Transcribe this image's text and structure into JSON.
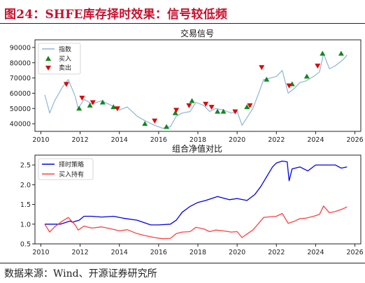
{
  "figure_title": "图24：SHFE库存择时效果：信号较低频",
  "source": "数据来源：Wind、开源证券研究所",
  "colors": {
    "accent": "#c8102e",
    "price": "#8fb5d6",
    "buy": "#0b8a1e",
    "sell": "#e00000",
    "strategy": "#0000ee",
    "hold": "#ff4040"
  },
  "chart_data": [
    {
      "type": "line",
      "title": "交易信号",
      "ylim": [
        35000,
        95000
      ],
      "yticks": [
        40000,
        50000,
        60000,
        70000,
        80000,
        90000
      ],
      "xlim": [
        2009.7,
        2026.3
      ],
      "xticks": [
        2010,
        2012,
        2014,
        2016,
        2018,
        2020,
        2022,
        2024,
        2026
      ],
      "legend_position": "top-left",
      "legend": [
        "指数",
        "买入",
        "卖出"
      ],
      "series": [
        {
          "name": "指数",
          "x": [
            2010.2,
            2010.45,
            2010.7,
            2011.1,
            2011.4,
            2011.75,
            2011.9,
            2012.2,
            2012.6,
            2013.1,
            2013.6,
            2014.0,
            2014.4,
            2014.9,
            2015.3,
            2015.8,
            2016.2,
            2016.6,
            2016.9,
            2017.2,
            2017.6,
            2017.9,
            2018.3,
            2018.6,
            2018.9,
            2019.3,
            2019.7,
            2020.0,
            2020.25,
            2020.5,
            2020.8,
            2021.1,
            2021.35,
            2021.7,
            2022.0,
            2022.3,
            2022.6,
            2022.9,
            2023.2,
            2023.5,
            2023.9,
            2024.2,
            2024.4,
            2024.7,
            2025.0,
            2025.4,
            2025.6
          ],
          "y": [
            59000,
            47000,
            55000,
            64000,
            69000,
            58000,
            50000,
            56000,
            53000,
            55000,
            52000,
            49000,
            51000,
            45000,
            42000,
            39000,
            37000,
            38000,
            45000,
            47000,
            48000,
            54000,
            52000,
            48000,
            50000,
            49000,
            47000,
            48000,
            39000,
            44000,
            50000,
            60000,
            69000,
            70000,
            71000,
            75000,
            60000,
            63000,
            67000,
            68000,
            71000,
            74000,
            86000,
            76000,
            78000,
            82000,
            85000
          ]
        }
      ],
      "buy_signals": {
        "x": [
          2011.95,
          2012.5,
          2013.15,
          2013.7,
          2015.3,
          2016.4,
          2016.85,
          2017.7,
          2019.0,
          2019.3,
          2020.5,
          2021.5,
          2022.8,
          2023.55,
          2024.35,
          2025.3
        ],
        "y": [
          50000,
          52000,
          54000,
          51000,
          40000,
          38000,
          47000,
          55000,
          48000,
          48000,
          51000,
          69000,
          66000,
          71000,
          86000,
          86000
        ]
      },
      "sell_signals": {
        "x": [
          2011.3,
          2012.1,
          2012.65,
          2013.9,
          2015.8,
          2016.9,
          2017.55,
          2018.4,
          2018.7,
          2019.9,
          2020.65,
          2021.25,
          2022.65,
          2024.1
        ],
        "y": [
          66000,
          57000,
          54000,
          50000,
          42000,
          49000,
          52000,
          53000,
          51000,
          48000,
          52000,
          77000,
          65000,
          78000
        ]
      }
    },
    {
      "type": "line",
      "title": "组合净值对比",
      "ylim": [
        0.5,
        2.75
      ],
      "yticks": [
        0.5,
        1.0,
        1.5,
        2.0,
        2.5
      ],
      "xlim": [
        2009.7,
        2026.3
      ],
      "xticks": [
        2010,
        2012,
        2014,
        2016,
        2018,
        2020,
        2022,
        2024,
        2026
      ],
      "legend_position": "top-left",
      "series": [
        {
          "name": "择时策略",
          "x": [
            2010.2,
            2011.0,
            2011.5,
            2011.6,
            2011.95,
            2012.2,
            2012.6,
            2013.1,
            2013.7,
            2014.2,
            2014.9,
            2015.2,
            2015.6,
            2016.0,
            2016.6,
            2016.9,
            2017.2,
            2017.6,
            2018.0,
            2018.4,
            2019.0,
            2019.6,
            2020.0,
            2020.5,
            2020.9,
            2021.2,
            2021.5,
            2021.8,
            2022.0,
            2022.3,
            2022.55,
            2022.65,
            2022.8,
            2023.2,
            2023.6,
            2024.0,
            2024.3,
            2024.8,
            2025.0,
            2025.3,
            2025.6
          ],
          "y": [
            1.0,
            1.0,
            1.08,
            1.05,
            1.1,
            1.2,
            1.2,
            1.18,
            1.2,
            1.15,
            1.1,
            1.05,
            0.98,
            0.98,
            1.0,
            1.1,
            1.3,
            1.45,
            1.55,
            1.6,
            1.7,
            1.62,
            1.65,
            1.6,
            1.75,
            1.95,
            2.2,
            2.45,
            2.55,
            2.6,
            2.58,
            2.1,
            2.4,
            2.45,
            2.35,
            2.5,
            2.5,
            2.5,
            2.5,
            2.42,
            2.45
          ]
        },
        {
          "name": "买入持有",
          "x": [
            2010.2,
            2010.45,
            2010.7,
            2011.1,
            2011.4,
            2011.75,
            2011.9,
            2012.2,
            2012.6,
            2013.1,
            2013.6,
            2014.0,
            2014.4,
            2014.9,
            2015.3,
            2015.8,
            2016.2,
            2016.6,
            2016.9,
            2017.2,
            2017.6,
            2017.9,
            2018.3,
            2018.6,
            2018.9,
            2019.3,
            2019.7,
            2020.0,
            2020.25,
            2020.5,
            2020.8,
            2021.1,
            2021.35,
            2021.7,
            2022.0,
            2022.3,
            2022.6,
            2022.9,
            2023.2,
            2023.5,
            2023.9,
            2024.2,
            2024.4,
            2024.7,
            2025.0,
            2025.4,
            2025.6
          ],
          "y": [
            1.0,
            0.8,
            0.93,
            1.08,
            1.17,
            0.98,
            0.85,
            0.95,
            0.9,
            0.93,
            0.88,
            0.83,
            0.86,
            0.76,
            0.71,
            0.66,
            0.63,
            0.64,
            0.76,
            0.8,
            0.81,
            0.92,
            0.88,
            0.81,
            0.85,
            0.83,
            0.8,
            0.81,
            0.66,
            0.75,
            0.85,
            1.02,
            1.17,
            1.19,
            1.2,
            1.27,
            1.02,
            1.07,
            1.14,
            1.15,
            1.2,
            1.25,
            1.46,
            1.29,
            1.32,
            1.39,
            1.44
          ]
        }
      ]
    }
  ]
}
